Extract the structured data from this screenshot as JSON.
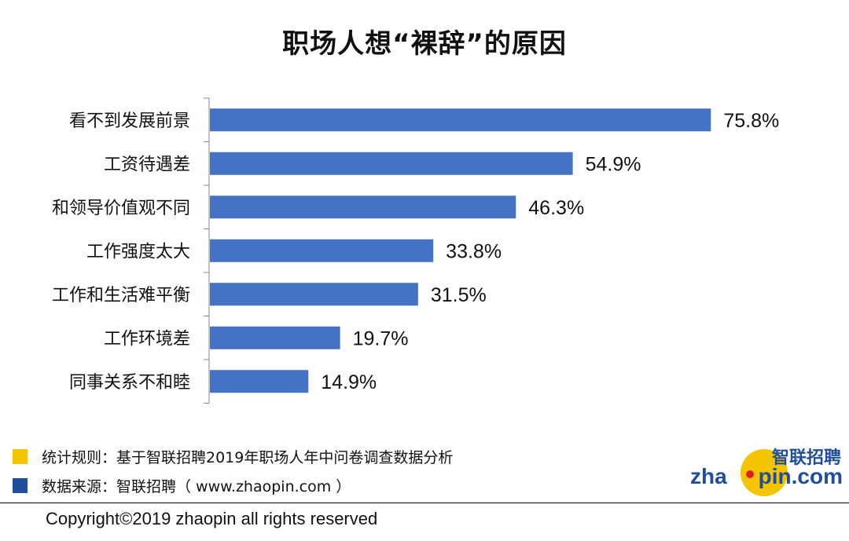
{
  "chart_data": {
    "type": "bar",
    "orientation": "horizontal",
    "title": "职场人想“裸辞”的原因",
    "categories": [
      "看不到发展前景",
      "工资待遇差",
      "和领导价值观不同",
      "工作强度太大",
      "工作和生活难平衡",
      "工作环境差",
      "同事关系不和睦"
    ],
    "values": [
      75.8,
      54.9,
      46.3,
      33.8,
      31.5,
      19.7,
      14.9
    ],
    "value_labels": [
      "75.8%",
      "54.9%",
      "46.3%",
      "33.8%",
      "31.5%",
      "19.7%",
      "14.9%"
    ],
    "unit": "%",
    "xlim": [
      0,
      76
    ],
    "grid": false,
    "bar_color": "#4472c4"
  },
  "notes": [
    {
      "text": "统计规则：基于智联招聘2019年职场人年中问卷调查数据分析",
      "color": "#f5c400"
    },
    {
      "text": "数据来源：智联招聘（ www.zhaopin.com ）",
      "color": "#1f4e9c"
    }
  ],
  "logo": {
    "cn": "智联招聘",
    "en_left": "zha",
    "en_right": "pin.com",
    "icon": "zhaopin-logo-icon"
  },
  "copyright": "Copyright©2019 zhaopin all rights reserved"
}
